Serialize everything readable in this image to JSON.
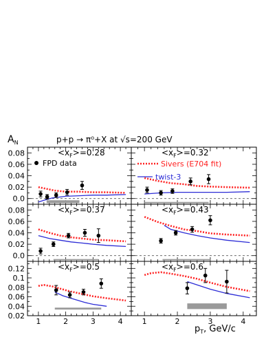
{
  "figure": {
    "title": "p+p → π⁰+X at √s=200 GeV",
    "ylabel": "A",
    "ylabel_sub": "N",
    "xlabel": "p",
    "xlabel_sub": "T",
    "xlabel_unit": ", GeV/c",
    "colors": {
      "sivers": "#ff2020",
      "twist3": "#2b2bd6",
      "data": "#000000"
    }
  },
  "legend": {
    "fpd": "FPD data",
    "sivers": "Sivers (E704 fit)",
    "twist3": "twist-3"
  },
  "chart_data": [
    {
      "type": "scatter",
      "panel_label": "<x",
      "panel_label_sub": "F",
      "panel_label_value": ">=0.28",
      "xlim": [
        0.6,
        4.4
      ],
      "ylim": [
        -0.01,
        0.09
      ],
      "yticks": [
        "0.0",
        "0.02",
        "0.04",
        "0.06",
        "0.08"
      ],
      "xticks": [],
      "series": [
        {
          "name": "FPD data",
          "x": [
            1.08,
            1.32,
            1.65,
            2.05,
            2.6
          ],
          "y": [
            0.008,
            0.003,
            0.006,
            0.011,
            0.023
          ],
          "yerr": [
            0.005,
            0.004,
            0.004,
            0.005,
            0.007
          ]
        },
        {
          "name": "Sivers (E704 fit)",
          "x": [
            1.0,
            1.3,
            1.6,
            2.0,
            2.5,
            3.0,
            3.5,
            4.2
          ],
          "y": [
            0.02,
            0.017,
            0.014,
            0.012,
            0.012,
            0.011,
            0.011,
            0.01
          ]
        },
        {
          "name": "twist-3",
          "x": [
            1.0,
            1.2,
            1.5,
            2.0,
            2.5,
            3.0,
            3.5,
            4.2
          ],
          "y": [
            -0.006,
            -0.003,
            0.001,
            0.004,
            0.005,
            0.006,
            0.006,
            0.007
          ]
        }
      ],
      "syst": {
        "x0": 1.3,
        "x1": 2.5,
        "y0": -0.008,
        "y1": -0.003
      }
    },
    {
      "type": "scatter",
      "panel_label": "<x",
      "panel_label_sub": "F",
      "panel_label_value": ">=0.32",
      "xlim": [
        0.6,
        4.4
      ],
      "ylim": [
        -0.01,
        0.09
      ],
      "yticks": [],
      "xticks": [],
      "series": [
        {
          "name": "FPD data",
          "x": [
            1.08,
            1.5,
            1.85,
            2.4,
            2.95
          ],
          "y": [
            0.015,
            0.01,
            0.013,
            0.03,
            0.034
          ],
          "yerr": [
            0.005,
            0.004,
            0.004,
            0.006,
            0.008
          ]
        },
        {
          "name": "Sivers (E704 fit)",
          "x": [
            1.0,
            1.4,
            1.8,
            2.2,
            2.6,
            3.0,
            3.5,
            4.2
          ],
          "y": [
            0.036,
            0.031,
            0.027,
            0.025,
            0.022,
            0.021,
            0.02,
            0.019
          ]
        },
        {
          "name": "twist-3",
          "x": [
            1.0,
            1.5,
            2.0,
            2.5,
            3.0,
            3.5,
            4.2
          ],
          "y": [
            0.008,
            0.01,
            0.011,
            0.011,
            0.011,
            0.011,
            0.012
          ]
        }
      ],
      "syst": {
        "x0": 1.0,
        "x1": 2.95,
        "y0": -0.008,
        "y1": -0.006
      }
    },
    {
      "type": "scatter",
      "panel_label": "<x",
      "panel_label_sub": "F",
      "panel_label_value": ">=0.37",
      "xlim": [
        0.6,
        4.4
      ],
      "ylim": [
        -0.01,
        0.09
      ],
      "yticks": [
        "0.0",
        "0.02",
        "0.04",
        "0.06",
        "0.08"
      ],
      "xticks": [],
      "series": [
        {
          "name": "FPD data",
          "x": [
            1.08,
            1.55,
            2.1,
            2.7,
            3.2
          ],
          "y": [
            0.008,
            0.02,
            0.035,
            0.04,
            0.035
          ],
          "yerr": [
            0.005,
            0.004,
            0.004,
            0.006,
            0.012
          ]
        },
        {
          "name": "Sivers (E704 fit)",
          "x": [
            1.0,
            1.4,
            1.8,
            2.2,
            2.6,
            3.0,
            3.5,
            4.2
          ],
          "y": [
            0.046,
            0.04,
            0.035,
            0.032,
            0.03,
            0.028,
            0.027,
            0.025
          ]
        },
        {
          "name": "twist-3",
          "x": [
            1.0,
            1.4,
            1.8,
            2.2,
            2.6,
            3.0,
            3.5,
            4.2
          ],
          "y": [
            0.035,
            0.03,
            0.027,
            0.024,
            0.022,
            0.02,
            0.018,
            0.016
          ]
        }
      ],
      "syst": {
        "x0": 1.55,
        "x1": 3.2,
        "y0": -0.008,
        "y1": -0.006
      }
    },
    {
      "type": "scatter",
      "panel_label": "<x",
      "panel_label_sub": "F",
      "panel_label_value": ">=0.43",
      "xlim": [
        0.6,
        4.4
      ],
      "ylim": [
        -0.01,
        0.09
      ],
      "yticks": [],
      "xticks": [],
      "series": [
        {
          "name": "FPD data",
          "x": [
            1.5,
            1.95,
            2.45,
            3.0
          ],
          "y": [
            0.026,
            0.04,
            0.046,
            0.062
          ],
          "yerr": [
            0.004,
            0.004,
            0.005,
            0.008
          ]
        },
        {
          "name": "Sivers (E704 fit)",
          "x": [
            1.0,
            1.4,
            1.8,
            2.2,
            2.6,
            3.0,
            3.5,
            4.2
          ],
          "y": [
            0.068,
            0.059,
            0.052,
            0.046,
            0.043,
            0.039,
            0.037,
            0.035
          ]
        },
        {
          "name": "twist-3",
          "x": [
            1.6,
            1.8,
            2.2,
            2.6,
            3.0,
            3.5,
            4.2
          ],
          "y": [
            0.053,
            0.046,
            0.04,
            0.035,
            0.031,
            0.027,
            0.023
          ]
        }
      ],
      "syst": {
        "x0": 1.55,
        "x1": 3.0,
        "y0": -0.008,
        "y1": -0.006
      }
    },
    {
      "type": "scatter",
      "panel_label": "<x",
      "panel_label_sub": "F",
      "panel_label_value": ">=0.5",
      "xlim": [
        0.6,
        4.4
      ],
      "ylim": [
        0.02,
        0.135
      ],
      "yticks": [
        "0.02",
        "0.04",
        "0.06",
        "0.08",
        "0.1",
        "0.12"
      ],
      "xticks": [
        "1",
        "2",
        "3",
        "4"
      ],
      "series": [
        {
          "name": "FPD data",
          "x": [
            1.65,
            2.15,
            2.65,
            3.3
          ],
          "y": [
            0.074,
            0.064,
            0.07,
            0.088
          ],
          "yerr": [
            0.01,
            0.006,
            0.006,
            0.01
          ]
        },
        {
          "name": "Sivers (E704 fit)",
          "x": [
            1.0,
            1.2,
            1.5,
            1.8,
            2.2,
            2.6,
            3.0,
            3.5,
            4.2
          ],
          "y": [
            0.083,
            0.085,
            0.082,
            0.077,
            0.071,
            0.066,
            0.061,
            0.057,
            0.052
          ]
        },
        {
          "name": "twist-3",
          "x": [
            1.6,
            1.9,
            2.3,
            2.7,
            3.0,
            3.5
          ],
          "y": [
            0.07,
            0.062,
            0.055,
            0.048,
            0.044,
            0.04
          ]
        }
      ],
      "syst": {
        "x0": 1.6,
        "x1": 3.3,
        "y0": 0.033,
        "y1": 0.037
      }
    },
    {
      "type": "scatter",
      "panel_label": "<x",
      "panel_label_sub": "F",
      "panel_label_value": ">=0.6",
      "xlim": [
        0.6,
        4.4
      ],
      "ylim": [
        0.02,
        0.135
      ],
      "yticks": [],
      "xticks": [
        "1",
        "2",
        "3",
        "4"
      ],
      "series": [
        {
          "name": "FPD data",
          "x": [
            2.3,
            2.85,
            3.5
          ],
          "y": [
            0.078,
            0.105,
            0.092
          ],
          "yerr": [
            0.012,
            0.015,
            0.024
          ]
        },
        {
          "name": "Sivers (E704 fit)",
          "x": [
            1.0,
            1.2,
            1.5,
            1.8,
            2.2,
            2.6,
            3.0,
            3.5,
            4.2
          ],
          "y": [
            0.106,
            0.11,
            0.112,
            0.109,
            0.104,
            0.098,
            0.09,
            0.081,
            0.072
          ]
        },
        {
          "name": "twist-3",
          "x": [
            2.3,
            2.6,
            3.0,
            3.5,
            4.2
          ],
          "y": [
            0.092,
            0.085,
            0.076,
            0.067,
            0.058
          ]
        }
      ],
      "syst": {
        "x0": 2.3,
        "x1": 3.5,
        "y0": 0.034,
        "y1": 0.046
      }
    }
  ]
}
